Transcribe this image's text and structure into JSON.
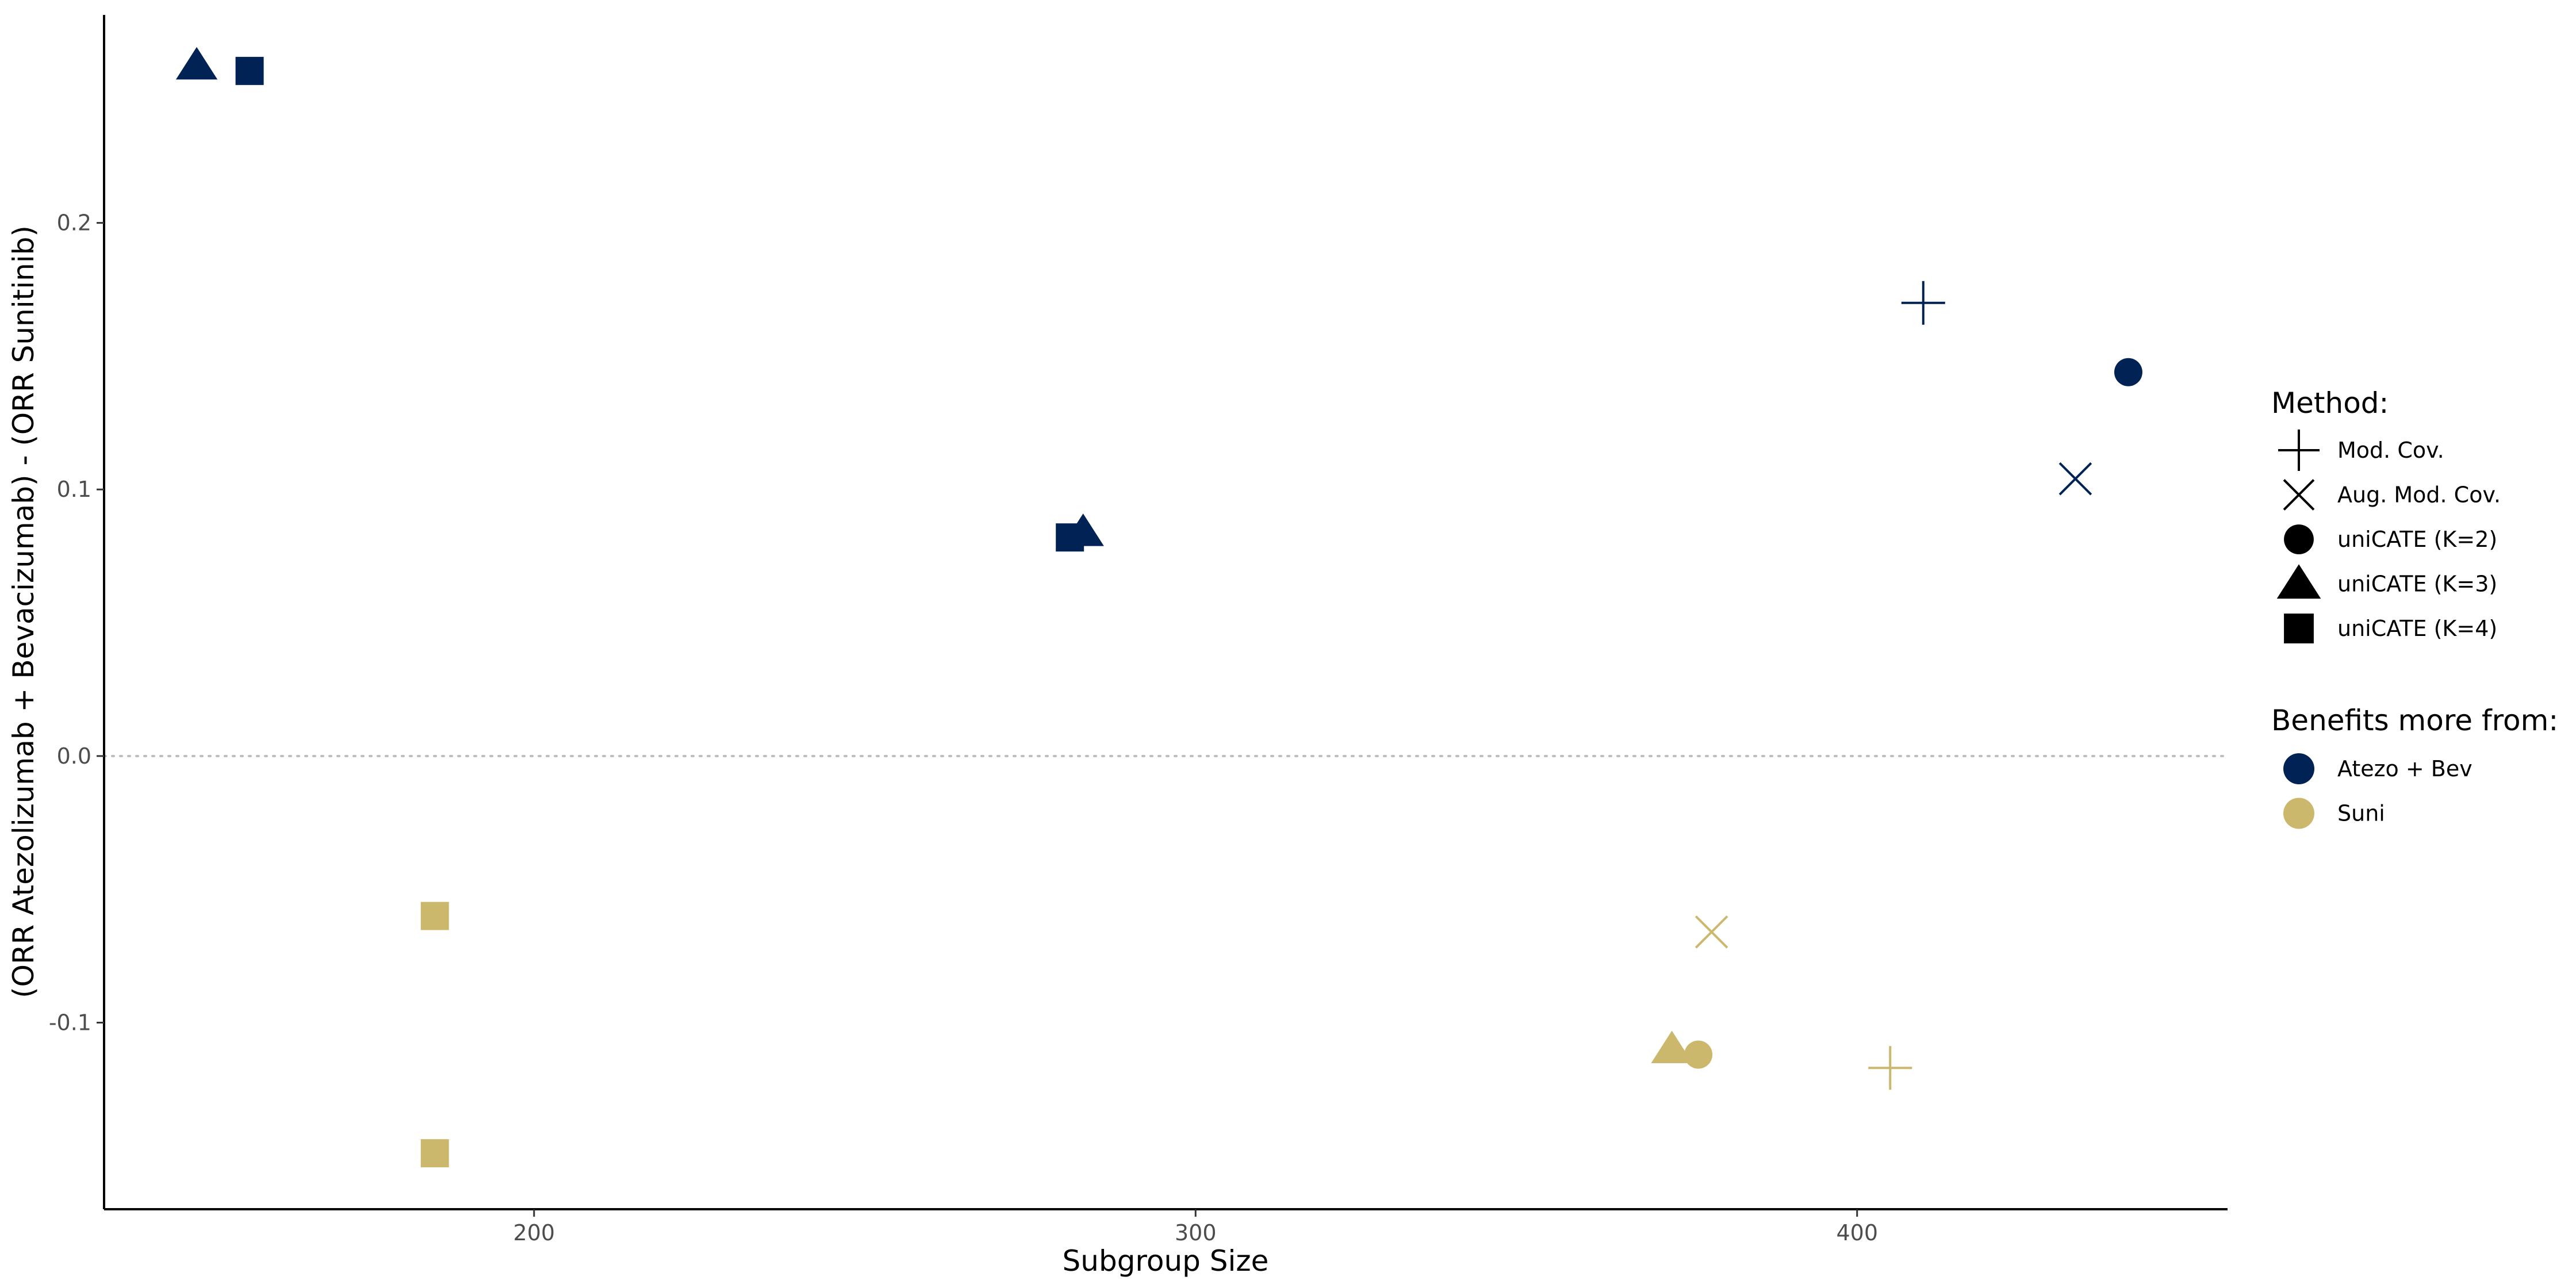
{
  "chart_data": {
    "type": "scatter",
    "title": "",
    "xlabel": "Subgroup Size",
    "ylabel": "(ORR Atezolizumab + Bevacizumab) - (ORR Sunitinib)",
    "xlim": [
      135,
      456
    ],
    "ylim": [
      -0.17,
      0.278
    ],
    "x_ticks": [
      200,
      300,
      400
    ],
    "x_tick_labels": [
      "200",
      "300",
      "400"
    ],
    "y_ticks": [
      -0.1,
      0.0,
      0.1,
      0.2
    ],
    "y_tick_labels": [
      "-0.1",
      "0.0",
      "0.1",
      "0.2"
    ],
    "reference_line": {
      "y": 0,
      "style": "dotted"
    },
    "grid": false,
    "legend_position": "right",
    "legends": {
      "method": {
        "title": "Method:",
        "items": [
          {
            "label": "Mod. Cov.",
            "shape": "plus"
          },
          {
            "label": "Aug. Mod. Cov.",
            "shape": "cross"
          },
          {
            "label": "uniCATE (K=2)",
            "shape": "circle"
          },
          {
            "label": "uniCATE (K=3)",
            "shape": "triangle"
          },
          {
            "label": "uniCATE (K=4)",
            "shape": "square"
          }
        ]
      },
      "benefit": {
        "title": "Benefits more from:",
        "items": [
          {
            "label": "Atezo + Bev",
            "color": "#002255"
          },
          {
            "label": "Suni",
            "color": "#cbb86d"
          }
        ]
      }
    },
    "colors": {
      "Atezo + Bev": "#002255",
      "Suni": "#cbb86d"
    },
    "points": [
      {
        "method": "Mod. Cov.",
        "benefit": "Atezo + Bev",
        "x": 410,
        "y": 0.17
      },
      {
        "method": "Aug. Mod. Cov.",
        "benefit": "Atezo + Bev",
        "x": 433,
        "y": 0.104
      },
      {
        "method": "uniCATE (K=2)",
        "benefit": "Atezo + Bev",
        "x": 441,
        "y": 0.144
      },
      {
        "method": "uniCATE (K=3)",
        "benefit": "Atezo + Bev",
        "x": 149,
        "y": 0.259
      },
      {
        "method": "uniCATE (K=3)",
        "benefit": "Atezo + Bev",
        "x": 283,
        "y": 0.084
      },
      {
        "method": "uniCATE (K=4)",
        "benefit": "Atezo + Bev",
        "x": 157,
        "y": 0.257
      },
      {
        "method": "uniCATE (K=4)",
        "benefit": "Atezo + Bev",
        "x": 281,
        "y": 0.082
      },
      {
        "method": "Mod. Cov.",
        "benefit": "Suni",
        "x": 405,
        "y": -0.117
      },
      {
        "method": "Aug. Mod. Cov.",
        "benefit": "Suni",
        "x": 378,
        "y": -0.066
      },
      {
        "method": "uniCATE (K=2)",
        "benefit": "Suni",
        "x": 376,
        "y": -0.112
      },
      {
        "method": "uniCATE (K=3)",
        "benefit": "Suni",
        "x": 372,
        "y": -0.11
      },
      {
        "method": "uniCATE (K=4)",
        "benefit": "Suni",
        "x": 185,
        "y": -0.06
      },
      {
        "method": "uniCATE (K=4)",
        "benefit": "Suni",
        "x": 185,
        "y": -0.149
      }
    ]
  }
}
